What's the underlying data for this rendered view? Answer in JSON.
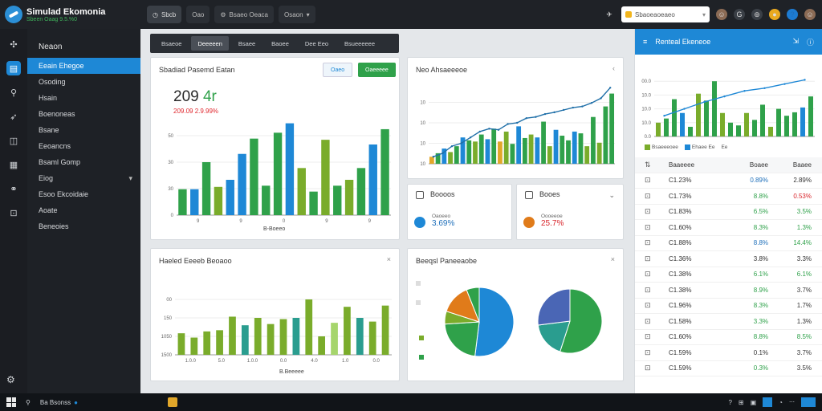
{
  "app": {
    "name": "Simulad Ekomonia",
    "subtitle": "Sbeen Oaag 9.5.%0"
  },
  "top_tabs": [
    {
      "label": "Sbcb",
      "icon": "clock-icon"
    },
    {
      "label": "Oao",
      "icon": "window-icon"
    },
    {
      "label": "Bsaeo Oeaca",
      "icon": "settings-icon"
    },
    {
      "label": "Osaon",
      "icon": "chevron-down-icon"
    }
  ],
  "search": {
    "value": "Sbaoeaoeaeo"
  },
  "sidebar": {
    "items": [
      {
        "label": "Neaon"
      },
      {
        "label": "Eeain Ehegoe"
      },
      {
        "label": "Osoding"
      },
      {
        "label": "Hsain"
      },
      {
        "label": "Boenoneas"
      },
      {
        "label": "Bsane"
      },
      {
        "label": "Eeoancns"
      },
      {
        "label": "Bsaml Gomp"
      },
      {
        "label": "Eiog"
      },
      {
        "label": "Esoo Ekcoidaie"
      },
      {
        "label": "Aoate"
      },
      {
        "label": "Beneoies"
      }
    ]
  },
  "main_tabs": [
    "Bsaeoe",
    "Deeeeen",
    "Bsaee",
    "Baoee",
    "Dee Eeo",
    "Bsueeeeee"
  ],
  "card1": {
    "title": "Sbadiad Pasemd Eatan",
    "btn_outline": "Oaeo",
    "btn_green": "Oaeeeee",
    "big_value": "209",
    "big_suffix": "4r",
    "sub_value": "209.09 2.9.99%",
    "footer": "B-Boeeo"
  },
  "card2": {
    "title": "Neo Ahsaeeeoe"
  },
  "stat1": {
    "title": "Boooos",
    "label": "Oaoeeo",
    "value": "3.69%"
  },
  "stat2": {
    "title": "Booes",
    "label": "Oooeeoe",
    "value": "25.7%"
  },
  "card3": {
    "title": "Haeled Eeeeb Beoaoo",
    "footer": "B.Beeeee"
  },
  "card4": {
    "title": "Beeqsl Paneeaobe"
  },
  "rpanel": {
    "title": "Renteal Ekeneoe",
    "header": {
      "c1": "Baaeeee",
      "c2": "Boaee",
      "c3": "Baaee"
    },
    "legend": [
      "Bsaeeeoee",
      "Ehaee Ee",
      "Ee"
    ],
    "rows": [
      {
        "c1": "C1.23%",
        "c2": "0.89%",
        "c3": "2.89%",
        "c2c": "blue",
        "c3c": "dark"
      },
      {
        "c1": "C1.73%",
        "c2": "8.8%",
        "c3": "0.53%",
        "c2c": "green",
        "c3c": "red"
      },
      {
        "c1": "C1.83%",
        "c2": "6.5%",
        "c3": "3.5%",
        "c2c": "green",
        "c3c": "green"
      },
      {
        "c1": "C1.60%",
        "c2": "8.3%",
        "c3": "1.3%",
        "c2c": "green",
        "c3c": "green"
      },
      {
        "c1": "C1.88%",
        "c2": "8.8%",
        "c3": "14.4%",
        "c2c": "blue",
        "c3c": "green"
      },
      {
        "c1": "C1.36%",
        "c2": "3.8%",
        "c3": "3.3%",
        "c2c": "dark",
        "c3c": "dark"
      },
      {
        "c1": "C1.38%",
        "c2": "6.1%",
        "c3": "6.1%",
        "c2c": "green",
        "c3c": "green"
      },
      {
        "c1": "C1.38%",
        "c2": "8.9%",
        "c3": "3.7%",
        "c2c": "green",
        "c3c": "dark"
      },
      {
        "c1": "C1.96%",
        "c2": "8.3%",
        "c3": "1.7%",
        "c2c": "green",
        "c3c": "dark"
      },
      {
        "c1": "C1.58%",
        "c2": "3.3%",
        "c3": "1.3%",
        "c2c": "green",
        "c3c": "dark"
      },
      {
        "c1": "C1.60%",
        "c2": "8.8%",
        "c3": "8.5%",
        "c2c": "green",
        "c3c": "green"
      },
      {
        "c1": "C1.59%",
        "c2": "0.1%",
        "c3": "3.7%",
        "c2c": "dark",
        "c3c": "dark"
      },
      {
        "c1": "C1.59%",
        "c2": "0.3%",
        "c3": "3.5%",
        "c2c": "green",
        "c3c": "dark"
      }
    ]
  },
  "taskbar": {
    "search_text": "Ba Bsonss"
  },
  "colors": {
    "accent": "#1e88d6",
    "green": "#2fa14a",
    "lime": "#7aac2b",
    "teal": "#2a9d8f"
  },
  "chart_data": [
    {
      "type": "bar",
      "ylim": [
        0,
        90
      ],
      "yticks": [
        "0",
        "30",
        "30",
        "50"
      ],
      "values": [
        22,
        22,
        45,
        24,
        30,
        52,
        65,
        25,
        70,
        78,
        40,
        20,
        64,
        25,
        30,
        40,
        60,
        73
      ],
      "colors": [
        "#2fa14a",
        "#1e88d6",
        "#2fa14a",
        "#7aac2b",
        "#1e88d6",
        "#1e88d6",
        "#2fa14a",
        "#2fa14a",
        "#2fa14a",
        "#1e88d6",
        "#7aac2b",
        "#2fa14a",
        "#7aac2b",
        "#2fa14a",
        "#7aac2b",
        "#2fa14a",
        "#1e88d6",
        "#2fa14a"
      ],
      "xticks": [
        "9",
        "9",
        "0",
        "9",
        "9"
      ]
    },
    {
      "type": "bar",
      "ylim": [
        0,
        140
      ],
      "yticks": [
        "10",
        "10",
        "10",
        "10"
      ],
      "values": [
        12,
        18,
        26,
        20,
        30,
        45,
        40,
        38,
        50,
        42,
        60,
        38,
        55,
        34,
        64,
        44,
        50,
        45,
        72,
        30,
        58,
        48,
        40,
        55,
        52,
        30,
        80,
        36,
        98,
        120
      ],
      "colors": [
        "#e2a72a",
        "#2fa14a",
        "#1e88d6",
        "#7aac2b",
        "#2fa14a",
        "#1e88d6",
        "#2fa14a",
        "#7aac2b",
        "#2fa14a",
        "#1e88d6",
        "#2fa14a",
        "#e2a72a",
        "#7aac2b",
        "#2fa14a",
        "#1e88d6",
        "#2fa14a",
        "#7aac2b",
        "#1e88d6",
        "#2fa14a",
        "#7aac2b",
        "#1e88d6",
        "#2fa14a",
        "#2fa14a",
        "#1e88d6",
        "#2fa14a",
        "#7aac2b",
        "#2fa14a",
        "#7aac2b",
        "#2fa14a",
        "#2fa14a"
      ],
      "line": [
        12,
        18,
        30,
        35,
        45,
        55,
        60,
        58,
        68,
        70,
        78,
        80,
        85,
        88,
        92,
        96,
        98,
        104,
        112,
        130
      ]
    },
    {
      "type": "bar",
      "ylim": [
        0,
        120
      ],
      "yticks": [
        "1500",
        "1050",
        "150",
        "00"
      ],
      "values": [
        35,
        28,
        38,
        40,
        62,
        48,
        60,
        50,
        58,
        60,
        90,
        30,
        52,
        78,
        60,
        54,
        80
      ],
      "colors": [
        "#7aac2b",
        "#7aac2b",
        "#7aac2b",
        "#7aac2b",
        "#7aac2b",
        "#2a9d8f",
        "#7aac2b",
        "#7aac2b",
        "#7aac2b",
        "#2a9d8f",
        "#7aac2b",
        "#7aac2b",
        "#a6d56c",
        "#7aac2b",
        "#2a9d8f",
        "#7aac2b",
        "#7aac2b"
      ],
      "xticks": [
        "1.0.0",
        "5.0",
        "1.0.0",
        "0.0",
        "4.0",
        "1.0",
        "0.0"
      ]
    },
    {
      "type": "pie",
      "slices": [
        {
          "value": 52,
          "color": "#1e88d6"
        },
        {
          "value": 22,
          "color": "#2fa14a"
        },
        {
          "value": 6,
          "color": "#7aac2b"
        },
        {
          "value": 14,
          "color": "#e07b1a"
        },
        {
          "value": 6,
          "color": "#2fa14a"
        }
      ]
    },
    {
      "type": "pie",
      "slices": [
        {
          "value": 55,
          "color": "#2fa14a"
        },
        {
          "value": 18,
          "color": "#2a9d8f"
        },
        {
          "value": 27,
          "color": "#4a66b5"
        }
      ]
    },
    {
      "type": "bar",
      "ylim": [
        0,
        100
      ],
      "yticks": [
        "0.0",
        "10.0",
        "10.0",
        "10.0",
        "00.0"
      ],
      "values": [
        20,
        26,
        54,
        34,
        14,
        62,
        52,
        80,
        34,
        20,
        16,
        34,
        24,
        46,
        14,
        40,
        30,
        35,
        42,
        58
      ],
      "colors": [
        "#7aac2b",
        "#2fa14a",
        "#2fa14a",
        "#1e88d6",
        "#2fa14a",
        "#7aac2b",
        "#2fa14a",
        "#2fa14a",
        "#7aac2b",
        "#2fa14a",
        "#2fa14a",
        "#7aac2b",
        "#2fa14a",
        "#2fa14a",
        "#7aac2b",
        "#2fa14a",
        "#2fa14a",
        "#2fa14a",
        "#1e88d6",
        "#2fa14a"
      ],
      "line": [
        30,
        40,
        50,
        58,
        66,
        70,
        76,
        82
      ]
    }
  ]
}
